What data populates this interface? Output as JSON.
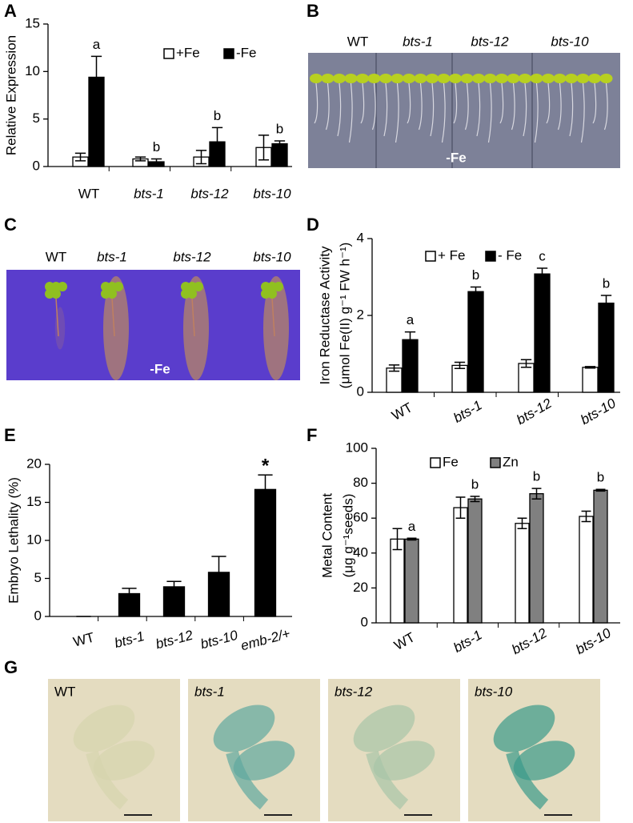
{
  "panel_labels": [
    "A",
    "B",
    "C",
    "D",
    "E",
    "F",
    "G"
  ],
  "photos": [
    {
      "labels": [
        "WT",
        "bts-1",
        "bts-12",
        "bts-10"
      ],
      "caption": "-Fe"
    },
    {
      "labels": [
        "WT",
        "bts-1",
        "bts-12",
        "bts-10"
      ],
      "caption": "-Fe"
    },
    {
      "labels": [
        "WT",
        "bts-1",
        "bts-12",
        "bts-10"
      ]
    }
  ],
  "chart_data": [
    {
      "type": "bar",
      "ylabel": [
        "Relative Expression"
      ],
      "categories": [
        "WT",
        "bts-1",
        "bts-12",
        "bts-10"
      ],
      "series": [
        {
          "name": "+Fe",
          "color": "#ffffff",
          "values": [
            1.0,
            0.8,
            1.0,
            2.0
          ],
          "errors": [
            0.4,
            0.2,
            0.7,
            1.3
          ]
        },
        {
          "name": "-Fe",
          "color": "#000000",
          "values": [
            9.4,
            0.5,
            2.6,
            2.4
          ],
          "errors": [
            2.2,
            0.3,
            1.5,
            0.3
          ],
          "significance": [
            "a",
            "b",
            "b",
            "b"
          ]
        }
      ],
      "ylim": [
        0,
        15
      ],
      "yticks": [
        0,
        5,
        10,
        15
      ]
    },
    {
      "type": "bar",
      "ylabel": [
        "Iron Reductase Activity",
        "(μmol Fe(II) g⁻¹ FW h⁻¹)"
      ],
      "categories": [
        "WT",
        "bts-1",
        "bts-12",
        "bts-10"
      ],
      "series": [
        {
          "name": "+ Fe",
          "color": "#ffffff",
          "values": [
            0.63,
            0.7,
            0.75,
            0.65
          ],
          "errors": [
            0.08,
            0.08,
            0.1,
            0.02
          ]
        },
        {
          "name": "- Fe",
          "color": "#000000",
          "values": [
            1.37,
            2.62,
            3.08,
            2.32
          ],
          "errors": [
            0.2,
            0.12,
            0.15,
            0.2
          ],
          "significance": [
            "a",
            "b",
            "c",
            "b"
          ]
        }
      ],
      "ylim": [
        0,
        4
      ],
      "yticks": [
        0,
        2,
        4
      ]
    },
    {
      "type": "bar",
      "ylabel": [
        "Embryo Lethality (%)"
      ],
      "categories": [
        "WT",
        "bts-1",
        "bts-12",
        "bts-10",
        "emb-2/+"
      ],
      "series": [
        {
          "color": "#000000",
          "values": [
            0,
            3.0,
            3.9,
            5.8,
            16.7
          ],
          "errors": [
            0,
            0.7,
            0.7,
            2.1,
            1.9
          ],
          "significance": [
            null,
            null,
            null,
            null,
            "*"
          ]
        }
      ],
      "ylim": [
        0,
        20
      ],
      "yticks": [
        0,
        5,
        10,
        15,
        20
      ]
    },
    {
      "type": "bar",
      "ylabel": [
        "Metal Content",
        "(μg g⁻¹seeds)"
      ],
      "categories": [
        "WT",
        "bts-1",
        "bts-12",
        "bts-10"
      ],
      "series": [
        {
          "name": "Fe",
          "color": "#ffffff",
          "values": [
            48,
            66,
            57,
            61
          ],
          "errors": [
            6,
            6,
            3,
            3
          ]
        },
        {
          "name": "Zn",
          "color": "#808080",
          "values": [
            48,
            71,
            74,
            76
          ],
          "errors": [
            0.5,
            1.5,
            3,
            0.5
          ],
          "significance": [
            "a",
            "b",
            "b",
            "b"
          ]
        }
      ],
      "ylim": [
        0,
        100
      ],
      "yticks": [
        0,
        20,
        40,
        60,
        80,
        100
      ]
    }
  ]
}
